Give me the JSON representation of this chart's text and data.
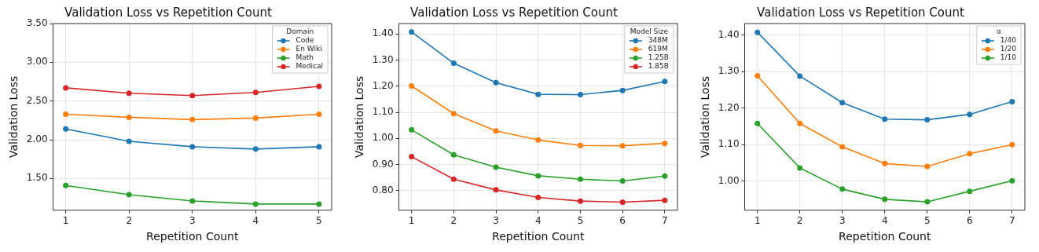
{
  "chart_data": [
    {
      "type": "line",
      "title": "Validation Loss vs Repetition Count",
      "xlabel": "Repetition Count",
      "ylabel": "Validation Loss",
      "legend_title": "Domain",
      "legend": "top right",
      "grid": true,
      "marker": "circle",
      "line_style": "solid",
      "x": [
        1,
        2,
        3,
        4,
        5
      ],
      "xlim": [
        0.8,
        5.2
      ],
      "xticks": [
        1,
        2,
        3,
        4,
        5
      ],
      "ylim": [
        1.09,
        3.5
      ],
      "yticks": [
        {
          "value": 1.5,
          "label": "1.50"
        },
        {
          "value": 2,
          "label": "2.00"
        },
        {
          "value": 2.5,
          "label": "2.50"
        },
        {
          "value": 3,
          "label": "3.00"
        },
        {
          "value": 3.5,
          "label": "3.50"
        }
      ],
      "series": [
        {
          "name": "Code",
          "color": "#1f77b4",
          "values": [
            2.14,
            1.98,
            1.91,
            1.88,
            1.91
          ]
        },
        {
          "name": "En Wiki",
          "color": "#ff7f0e",
          "values": [
            2.33,
            2.29,
            2.26,
            2.28,
            2.33
          ]
        },
        {
          "name": "Math",
          "color": "#2ca02c",
          "values": [
            1.41,
            1.29,
            1.21,
            1.17,
            1.17
          ]
        },
        {
          "name": "Medical",
          "color": "#d62728",
          "values": [
            2.67,
            2.6,
            2.57,
            2.61,
            2.69
          ]
        }
      ]
    },
    {
      "type": "line",
      "title": "Validation Loss vs Repetition Count",
      "xlabel": "Repetition Count",
      "ylabel": "Validation Loss",
      "legend_title": "Model Size",
      "legend": "top right",
      "grid": true,
      "marker": "circle",
      "line_style": "solid",
      "x": [
        1,
        2,
        3,
        4,
        5,
        6,
        7
      ],
      "xlim": [
        0.7,
        7.3
      ],
      "xticks": [
        1,
        2,
        3,
        4,
        5,
        6,
        7
      ],
      "ylim": [
        0.725,
        1.44
      ],
      "yticks": [
        {
          "value": 0.8,
          "label": "0.80"
        },
        {
          "value": 0.9,
          "label": "0.90"
        },
        {
          "value": 1,
          "label": "1.00"
        },
        {
          "value": 1.1,
          "label": "1.10"
        },
        {
          "value": 1.2,
          "label": "1.20"
        },
        {
          "value": 1.3,
          "label": "1.30"
        },
        {
          "value": 1.4,
          "label": "1.40"
        }
      ],
      "series": [
        {
          "name": "348M",
          "color": "#1f77b4",
          "values": [
            1.408,
            1.288,
            1.214,
            1.169,
            1.168,
            1.184,
            1.218
          ]
        },
        {
          "name": "619M",
          "color": "#ff7f0e",
          "values": [
            1.201,
            1.095,
            1.029,
            0.994,
            0.973,
            0.972,
            0.981
          ]
        },
        {
          "name": "1.25B",
          "color": "#2ca02c",
          "values": [
            1.033,
            0.937,
            0.89,
            0.857,
            0.844,
            0.837,
            0.856
          ]
        },
        {
          "name": "1.85B",
          "color": "#d62728",
          "values": [
            0.93,
            0.844,
            0.803,
            0.774,
            0.76,
            0.756,
            0.763
          ]
        }
      ]
    },
    {
      "type": "line",
      "title": "Validation Loss vs Repetition Count",
      "xlabel": "Repetition Count",
      "ylabel": "Validation Loss",
      "legend_title": "α",
      "legend": "top right",
      "grid": true,
      "marker": "circle",
      "line_style": "solid",
      "x": [
        1,
        2,
        3,
        4,
        5,
        6,
        7
      ],
      "xlim": [
        0.7,
        7.3
      ],
      "xticks": [
        1,
        2,
        3,
        4,
        5,
        6,
        7
      ],
      "ylim": [
        0.92,
        1.432
      ],
      "yticks": [
        {
          "value": 1,
          "label": "1.00"
        },
        {
          "value": 1.1,
          "label": "1.10"
        },
        {
          "value": 1.2,
          "label": "1.20"
        },
        {
          "value": 1.3,
          "label": "1.30"
        },
        {
          "value": 1.4,
          "label": "1.40"
        }
      ],
      "series": [
        {
          "name": "1/40",
          "color": "#1f77b4",
          "values": [
            1.408,
            1.288,
            1.215,
            1.17,
            1.168,
            1.183,
            1.218
          ]
        },
        {
          "name": "1/20",
          "color": "#ff7f0e",
          "values": [
            1.289,
            1.158,
            1.094,
            1.048,
            1.04,
            1.075,
            1.1
          ]
        },
        {
          "name": "1/10",
          "color": "#2ca02c",
          "values": [
            1.158,
            1.036,
            0.978,
            0.95,
            0.943,
            0.972,
            1.001
          ]
        }
      ]
    }
  ]
}
